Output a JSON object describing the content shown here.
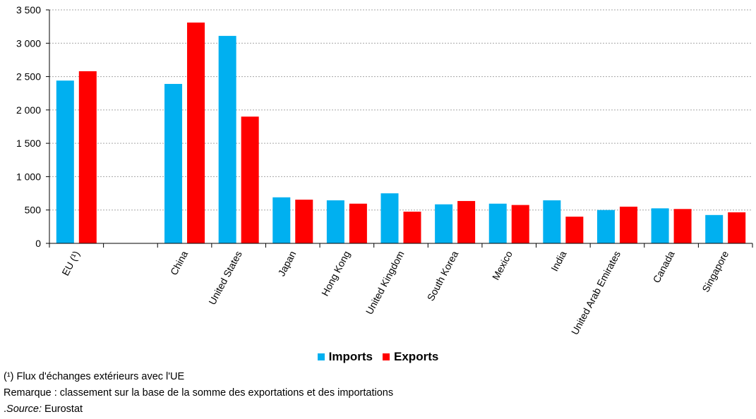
{
  "chart_data": {
    "type": "bar",
    "categories": [
      "EU (¹)",
      "",
      "China",
      "United States",
      "Japan",
      "Hong Kong",
      "United Kingdom",
      "South Korea",
      "Mexico",
      "India",
      "United Arab Emirates",
      "Canada",
      "Singapore"
    ],
    "series": [
      {
        "name": "Imports",
        "color": "#00b0f0",
        "values": [
          2440,
          null,
          2390,
          3110,
          690,
          645,
          750,
          585,
          595,
          645,
          500,
          525,
          425
        ]
      },
      {
        "name": "Exports",
        "color": "#ff0000",
        "values": [
          2580,
          null,
          3310,
          1900,
          655,
          595,
          475,
          635,
          575,
          400,
          550,
          515,
          465
        ]
      }
    ],
    "yticks": [
      "3 500",
      "3 000",
      "2 500",
      "2 000",
      "1 500",
      "1 000",
      "500",
      "0"
    ],
    "ylim": [
      0,
      3500
    ],
    "ystep": 500,
    "grid": true,
    "legend_position": "bottom-center"
  },
  "notes": {
    "footnote": "(¹) Flux d'échanges extérieurs avec l'UE",
    "remark": "Remarque : classement sur la base de la somme des exportations et des importations",
    "source_prefix": ".",
    "source_label": "Source:",
    "source_value": " Eurostat"
  }
}
